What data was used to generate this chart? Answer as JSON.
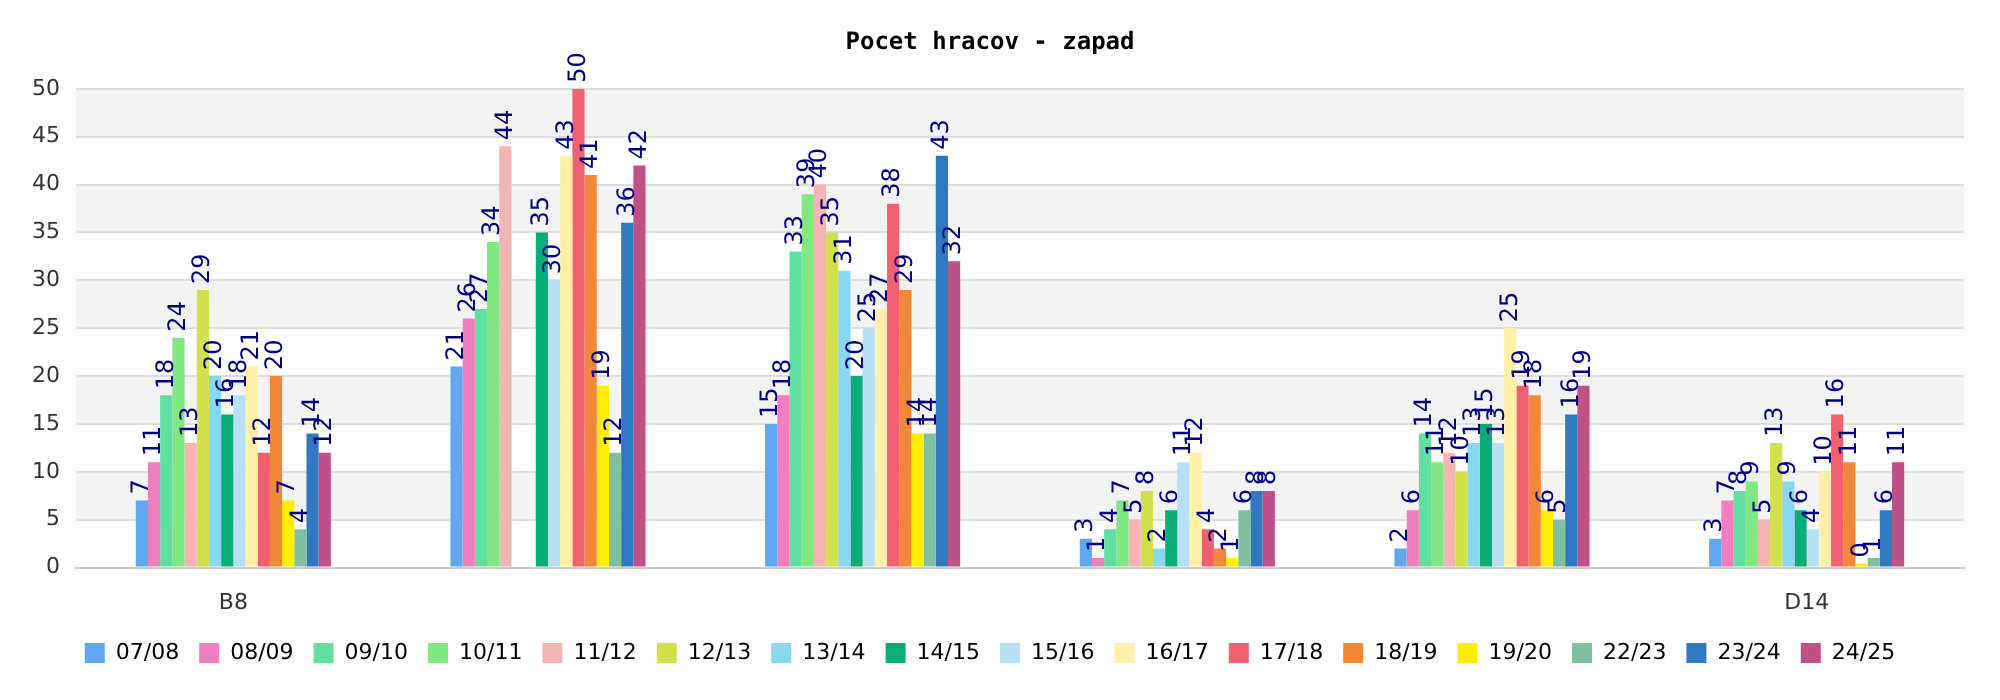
{
  "chart_data": {
    "type": "bar",
    "title": "Pocet hracov - zapad",
    "categories": [
      "B8",
      null,
      null,
      null,
      null,
      "D14"
    ],
    "series": [
      {
        "name": "07/08",
        "color": "#5fa8f0",
        "values": [
          7,
          21,
          15,
          3,
          2,
          3
        ]
      },
      {
        "name": "08/09",
        "color": "#f07fbf",
        "values": [
          11,
          26,
          18,
          1,
          6,
          7
        ]
      },
      {
        "name": "09/10",
        "color": "#5fdfa0",
        "values": [
          18,
          27,
          33,
          4,
          14,
          8
        ]
      },
      {
        "name": "10/11",
        "color": "#80e880",
        "values": [
          24,
          34,
          39,
          7,
          11,
          9
        ]
      },
      {
        "name": "11/12",
        "color": "#f4b4b4",
        "values": [
          13,
          44,
          40,
          5,
          12,
          5
        ]
      },
      {
        "name": "12/13",
        "color": "#d4df4c",
        "values": [
          29,
          null,
          35,
          8,
          10,
          13
        ]
      },
      {
        "name": "13/14",
        "color": "#88d8f0",
        "values": [
          20,
          null,
          31,
          2,
          13,
          9
        ]
      },
      {
        "name": "14/15",
        "color": "#0aad78",
        "values": [
          16,
          35,
          20,
          6,
          15,
          6
        ]
      },
      {
        "name": "15/16",
        "color": "#b8e0f4",
        "values": [
          18,
          30,
          25,
          11,
          13,
          4
        ]
      },
      {
        "name": "16/17",
        "color": "#fff0a8",
        "values": [
          21,
          43,
          27,
          12,
          25,
          10
        ]
      },
      {
        "name": "17/18",
        "color": "#f06070",
        "values": [
          12,
          50,
          38,
          4,
          19,
          16
        ]
      },
      {
        "name": "18/19",
        "color": "#f08838",
        "values": [
          20,
          41,
          29,
          2,
          18,
          11
        ]
      },
      {
        "name": "19/20",
        "color": "#ffee00",
        "values": [
          7,
          19,
          14,
          1,
          6,
          0
        ]
      },
      {
        "name": "22/23",
        "color": "#80c0a0",
        "values": [
          4,
          12,
          14,
          6,
          5,
          1
        ]
      },
      {
        "name": "23/24",
        "color": "#3078c0",
        "values": [
          14,
          36,
          43,
          8,
          16,
          6
        ]
      },
      {
        "name": "24/25",
        "color": "#c05088",
        "values": [
          12,
          42,
          32,
          8,
          19,
          11
        ]
      }
    ],
    "ylim": [
      0,
      50
    ],
    "yticks": [
      0,
      5,
      10,
      15,
      20,
      25,
      30,
      35,
      40,
      45,
      50
    ],
    "grid": "y",
    "legend": "bottom",
    "data_labels": true
  }
}
